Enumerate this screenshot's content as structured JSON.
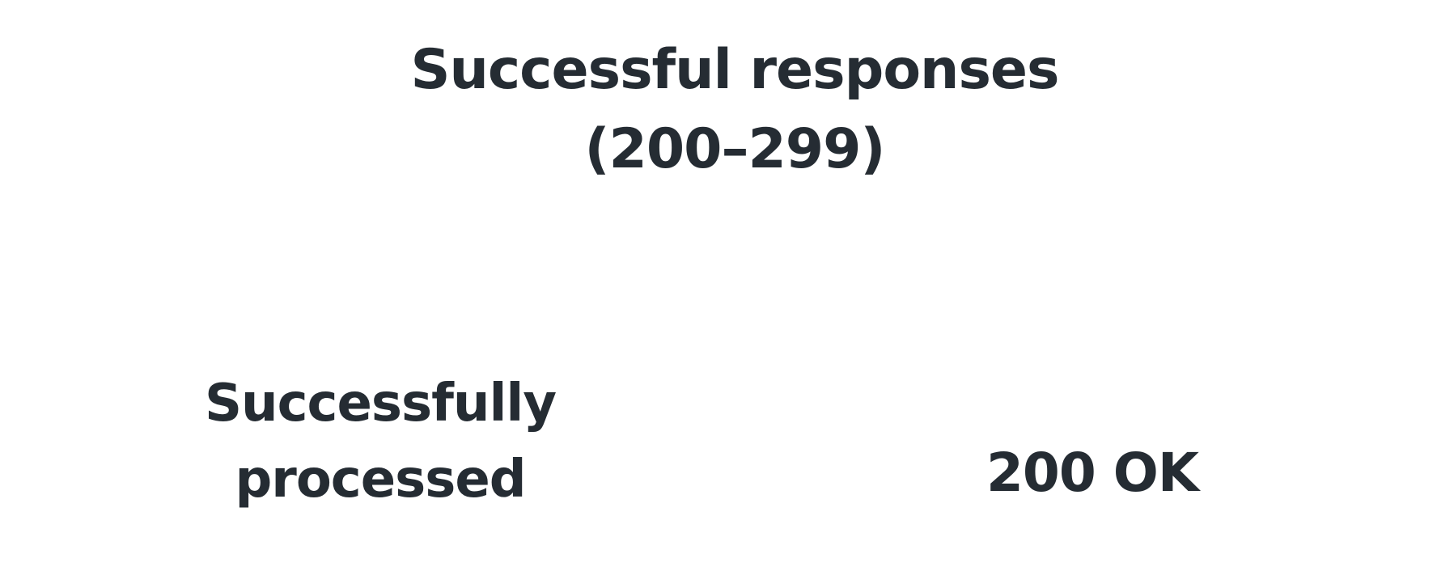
{
  "heading": {
    "line1": "Successful responses",
    "line2": "(200–299)"
  },
  "row": {
    "description_line1": "Successfully",
    "description_line2": "processed",
    "status_code": "200 OK"
  },
  "colors": {
    "text": "#252c33",
    "background": "#ffffff"
  }
}
